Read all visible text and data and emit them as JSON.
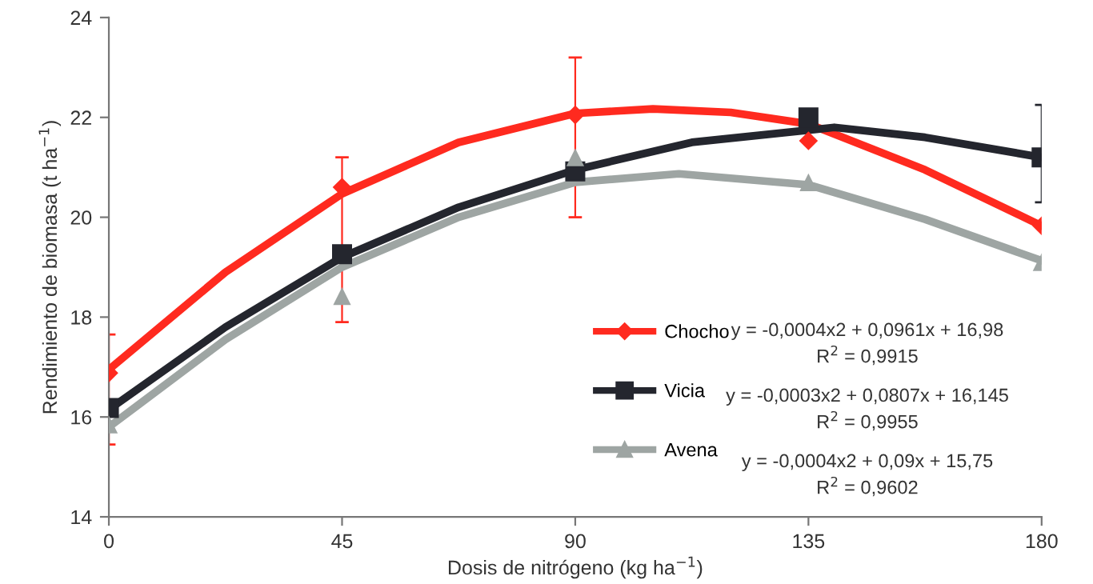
{
  "chart_data": {
    "type": "scatter",
    "xlabel": "Dosis de nitrógeno (kg ha$^{−1}$)",
    "ylabel": "Rendimiento de biomasa (t ha$^{−1}$)",
    "x": [
      0,
      45,
      90,
      135,
      180
    ],
    "xlim": [
      0,
      180
    ],
    "xticks": [
      0,
      45,
      90,
      135,
      180
    ],
    "ylim": [
      14,
      24
    ],
    "yticks": [
      14,
      16,
      18,
      20,
      22,
      24
    ],
    "grid": false,
    "legend": "bottom right",
    "series": [
      {
        "name": "Chocho",
        "color": "#ff2a1f",
        "marker": "diamond",
        "values": [
          16.88,
          20.6,
          22.05,
          21.53,
          19.83
        ],
        "errors": [
          [
            15.45,
            17.65
          ],
          [
            17.9,
            21.2
          ],
          [
            20.0,
            23.2
          ],
          null,
          null
        ]
      },
      {
        "name": "Vicia",
        "color": "#24262e",
        "marker": "square",
        "values": [
          16.18,
          19.26,
          20.92,
          22.0,
          21.2
        ],
        "errors": [
          null,
          null,
          null,
          null,
          [
            20.3,
            22.25
          ]
        ]
      },
      {
        "name": "Avena",
        "color": "#9ea5a3",
        "marker": "triangle",
        "values": [
          15.85,
          18.42,
          21.2,
          20.7,
          19.1
        ]
      },
      {
        "type": "line",
        "color": "#ff2a1f",
        "x": [
          0,
          22.5,
          45,
          67.5,
          90,
          105,
          120,
          135,
          157.5,
          180
        ],
        "values": [
          16.95,
          18.9,
          20.47,
          21.5,
          22.08,
          22.17,
          22.1,
          21.87,
          20.95,
          19.83
        ]
      },
      {
        "type": "line",
        "color": "#24262e",
        "x": [
          0,
          22.5,
          45,
          67.5,
          90,
          112.5,
          140,
          157.5,
          180
        ],
        "values": [
          16.15,
          17.8,
          19.2,
          20.2,
          20.95,
          21.5,
          21.8,
          21.6,
          21.2
        ]
      },
      {
        "type": "line",
        "color": "#9ea5a3",
        "x": [
          0,
          22.5,
          45,
          67.5,
          90,
          110,
          135,
          157.5,
          180
        ],
        "values": [
          15.8,
          17.55,
          19.0,
          20.0,
          20.7,
          20.87,
          20.65,
          19.96,
          19.13
        ]
      }
    ],
    "annotations": [
      "y = -0,0004x2 + 0,0961x + 16,98",
      "R$^{2}$ = 0,9915",
      "y = -0,0003x2 + 0,0807x + 16,145",
      "R$^{2}$ = 0,9955",
      "y = -0,0004x2 + 0,09x + 15,75",
      "R$^{2}$ = 0,9602"
    ]
  }
}
